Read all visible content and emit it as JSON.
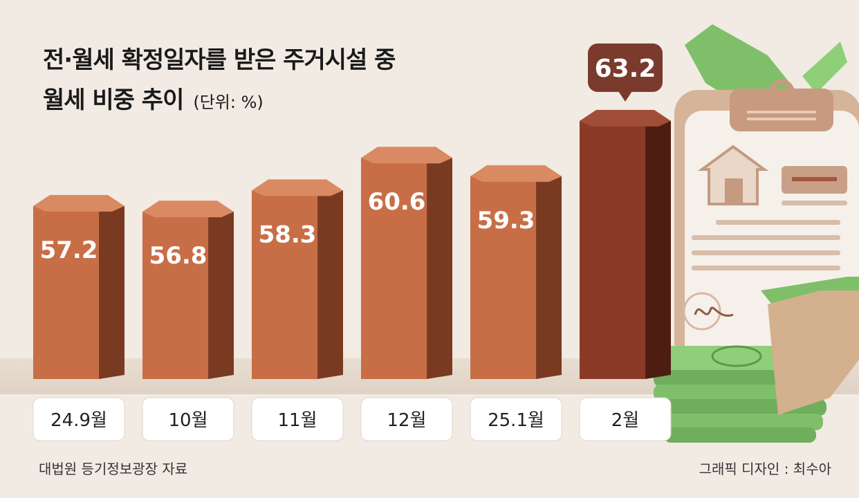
{
  "title_line1": "전·월세 확정일자를 받은 주거시설 중",
  "title_line2": "월세 비중 추이",
  "unit": "(단위: %)",
  "source": "대법원 등기정보광장 자료",
  "credit": "그래픽 디자인 : 최수아",
  "colors": {
    "background": "#f1ebe3",
    "bar_front": "#c86e47",
    "bar_top": "#d98a63",
    "bar_side": "#7a3a22",
    "highlight_front": "#8a3a26",
    "highlight_top": "#a04e38",
    "highlight_side": "#4e1d12",
    "callout": "#7a3a2c",
    "label_box": "#ffffff"
  },
  "chart_data": {
    "type": "bar",
    "categories": [
      "24.9월",
      "10월",
      "11월",
      "12월",
      "25.1월",
      "2월"
    ],
    "values": [
      57.2,
      56.8,
      58.3,
      60.6,
      59.3,
      63.2
    ],
    "value_labels": [
      "57.2",
      "56.8",
      "58.3",
      "60.6",
      "59.3",
      "63.2"
    ],
    "highlight_index": 5,
    "ylim": [
      45,
      65
    ],
    "title": "전·월세 확정일자를 받은 주거시설 중 월세 비중 추이",
    "xlabel": "",
    "ylabel": ""
  }
}
